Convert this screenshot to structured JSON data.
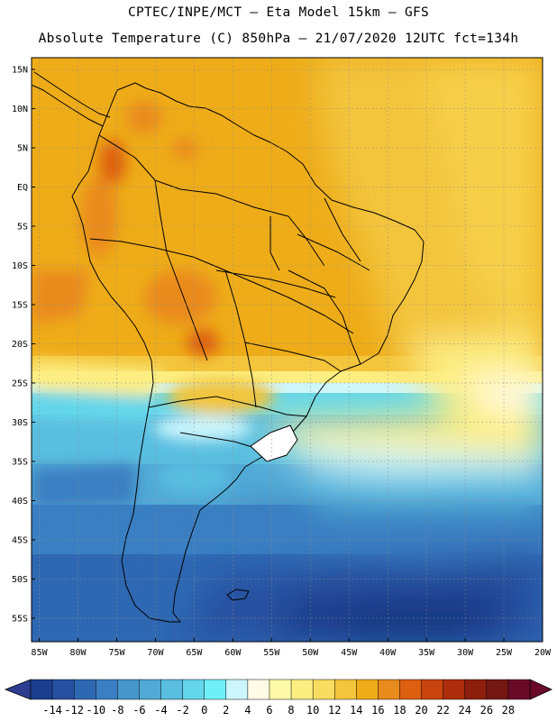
{
  "header": {
    "line1": "CPTEC/INPE/MCT –  Eta Model 15km – GFS",
    "line2": "Absolute Temperature (C) 850hPa – 21/07/2020 12UTC fct=134h"
  },
  "map": {
    "lat_labels": [
      "15N",
      "10N",
      "5N",
      "EQ",
      "5S",
      "10S",
      "15S",
      "20S",
      "25S",
      "30S",
      "35S",
      "40S",
      "45S",
      "50S",
      "55S"
    ],
    "lon_labels": [
      "85W",
      "80W",
      "75W",
      "70W",
      "65W",
      "60W",
      "55W",
      "50W",
      "45W",
      "40W",
      "35W",
      "30W",
      "25W",
      "20W"
    ],
    "lat_range": [
      -58,
      16.5
    ],
    "lon_range": [
      -86,
      -20
    ],
    "grid": true
  },
  "colorbar": {
    "labels": [
      "-14",
      "-12",
      "-10",
      "-8",
      "-6",
      "-4",
      "-2",
      "0",
      "2",
      "4",
      "6",
      "8",
      "10",
      "12",
      "14",
      "16",
      "18",
      "20",
      "22",
      "24",
      "26",
      "28"
    ],
    "colors": [
      "#1c3d8c",
      "#2651a0",
      "#2f68b2",
      "#3a7fc2",
      "#4696cc",
      "#51aad6",
      "#59bee0",
      "#64d6ea",
      "#6ff0f7",
      "#cdf6fc",
      "#fffbe6",
      "#fffaa8",
      "#fdee82",
      "#f9dd60",
      "#f3c53c",
      "#eeac19",
      "#e98a1c",
      "#dd5f10",
      "#c8430e",
      "#ad2c0c",
      "#8c1f0c",
      "#751813",
      "#6a0a29"
    ],
    "end_low_color": "#2c3d90",
    "end_high_color": "#6a0a29"
  }
}
